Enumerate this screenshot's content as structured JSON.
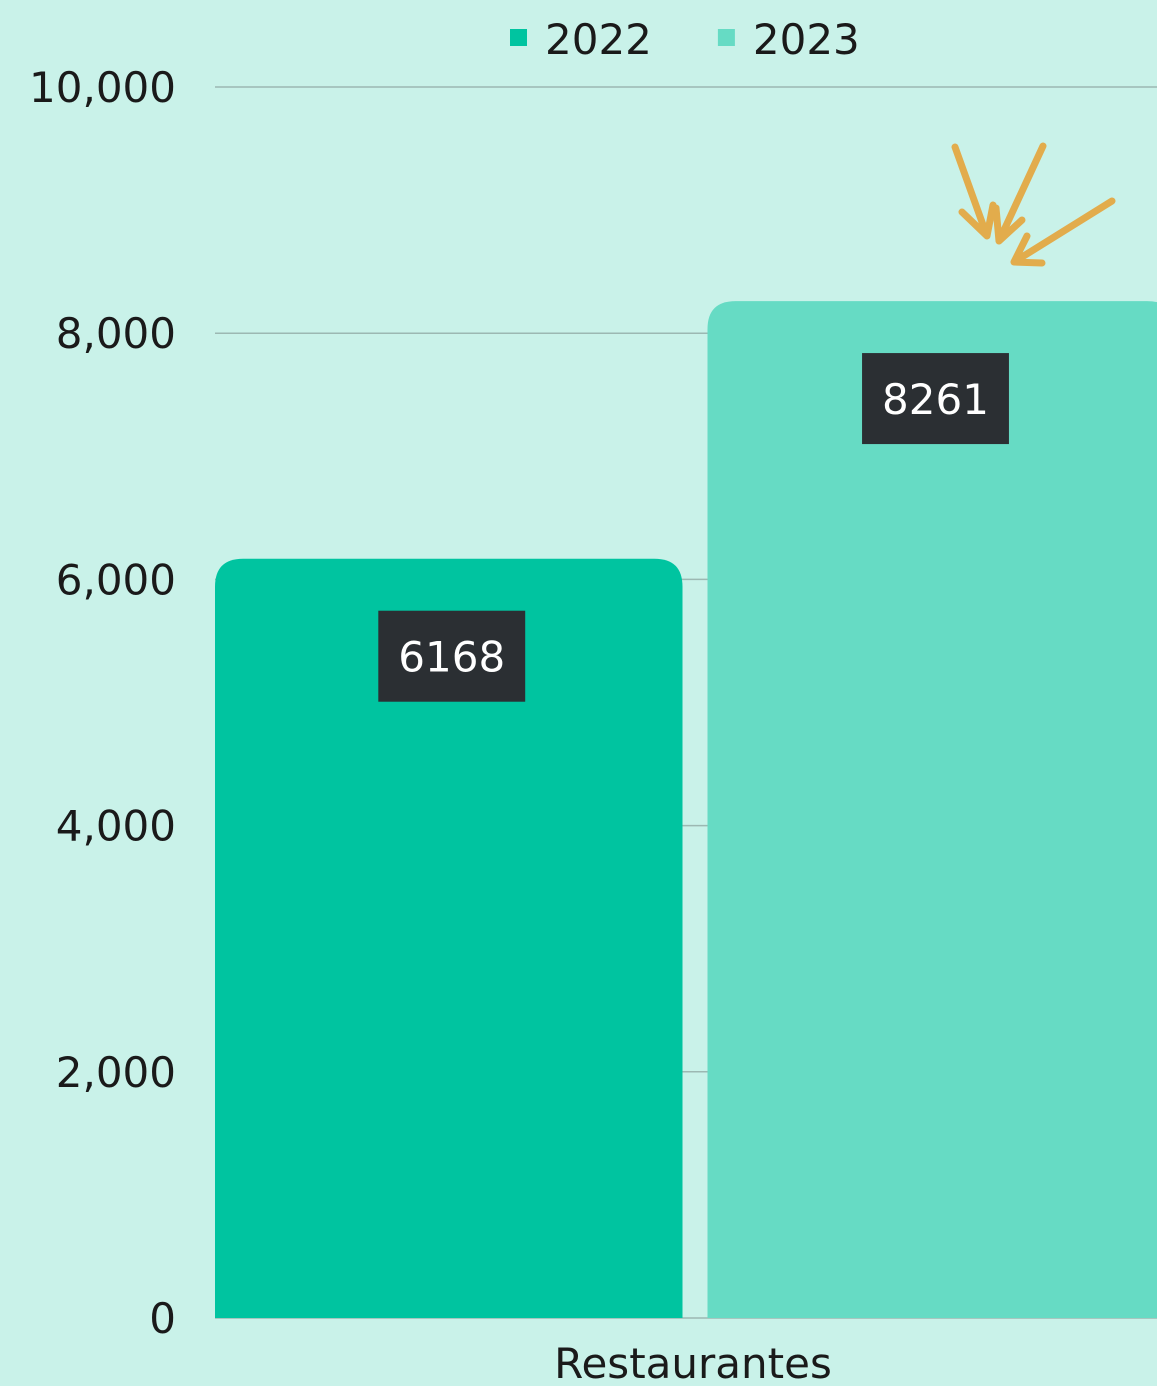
{
  "chart_data": {
    "type": "bar",
    "categories": [
      "Restaurantes"
    ],
    "series": [
      {
        "name": "2022",
        "color": "#00c4a0",
        "values": [
          6168
        ]
      },
      {
        "name": "2023",
        "color": "#66dbc4",
        "values": [
          8261
        ]
      }
    ],
    "ylim": [
      0,
      10000
    ],
    "yticks": [
      0,
      {
        "value": 2000,
        "label": "2,000"
      },
      {
        "value": 4000,
        "label": "4,000"
      },
      {
        "value": 6000,
        "label": "6,000"
      },
      {
        "value": 8000,
        "label": "8,000"
      },
      {
        "value": 10000,
        "label": "10,000"
      }
    ],
    "grid": true,
    "legend": "top"
  }
}
